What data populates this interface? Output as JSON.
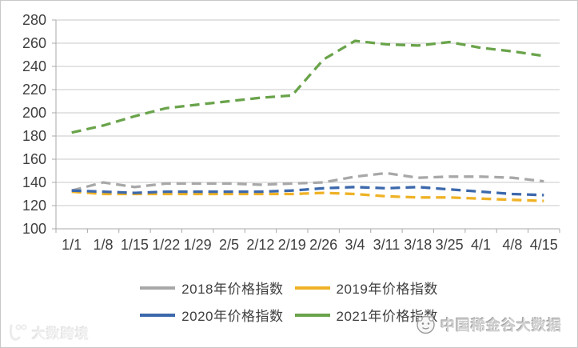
{
  "chart_data": {
    "type": "line",
    "title": "",
    "line_style": "dashed",
    "grid": "horizontal",
    "legend_position": "bottom",
    "categories": [
      "1/1",
      "1/8",
      "1/15",
      "1/22",
      "1/29",
      "2/5",
      "2/12",
      "2/19",
      "2/26",
      "3/4",
      "3/11",
      "3/18",
      "3/25",
      "4/1",
      "4/8",
      "4/15"
    ],
    "y_axis": {
      "min": 100,
      "max": 280,
      "step": 20,
      "tick_labels": [
        "100",
        "120",
        "140",
        "160",
        "180",
        "200",
        "220",
        "240",
        "260",
        "280"
      ]
    },
    "series": [
      {
        "name": "2018年价格指数",
        "color": "#a8a8a8",
        "values": [
          133,
          140,
          136,
          139,
          139,
          139,
          138,
          139,
          140,
          145,
          148,
          144,
          145,
          145,
          144,
          141
        ]
      },
      {
        "name": "2019年价格指数",
        "color": "#efb226",
        "values": [
          132,
          130,
          130,
          130,
          130,
          130,
          130,
          130,
          131,
          130,
          128,
          127,
          127,
          126,
          125,
          124
        ]
      },
      {
        "name": "2020年价格指数",
        "color": "#3c68ac",
        "values": [
          133,
          132,
          131,
          132,
          132,
          132,
          132,
          133,
          135,
          136,
          135,
          136,
          134,
          132,
          130,
          129
        ]
      },
      {
        "name": "2021年价格指数",
        "color": "#69a34a",
        "values": [
          183,
          189,
          197,
          204,
          207,
          210,
          213,
          215,
          246,
          262,
          259,
          258,
          261,
          256,
          253,
          249
        ]
      }
    ]
  },
  "watermarks": {
    "bottom_left": {
      "text": "大数跨境",
      "icon": "dashu-logo"
    },
    "bottom_right": {
      "text": "中国稀金谷大数据",
      "icon": "rare-metal-valley-logo"
    }
  }
}
